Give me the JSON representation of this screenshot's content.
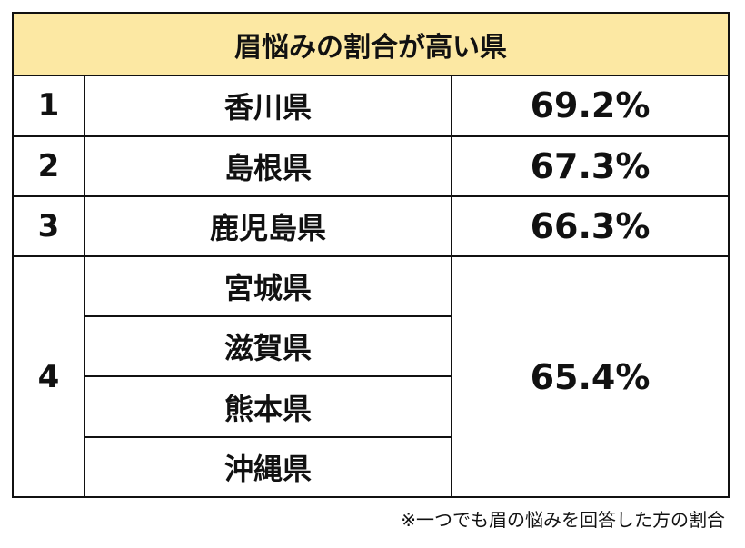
{
  "title": "眉悩みの割合が高い県",
  "rows": [
    {
      "rank": "1",
      "prefectures": [
        "香川県"
      ],
      "percent": "69.2%"
    },
    {
      "rank": "2",
      "prefectures": [
        "島根県"
      ],
      "percent": "67.3%"
    },
    {
      "rank": "3",
      "prefectures": [
        "鹿児島県"
      ],
      "percent": "66.3%"
    },
    {
      "rank": "4",
      "prefectures": [
        "宮城県",
        "滋賀県",
        "熊本県",
        "沖縄県"
      ],
      "percent": "65.4%"
    }
  ],
  "footnote": "※一つでも眉の悩みを回答した方の割合"
}
